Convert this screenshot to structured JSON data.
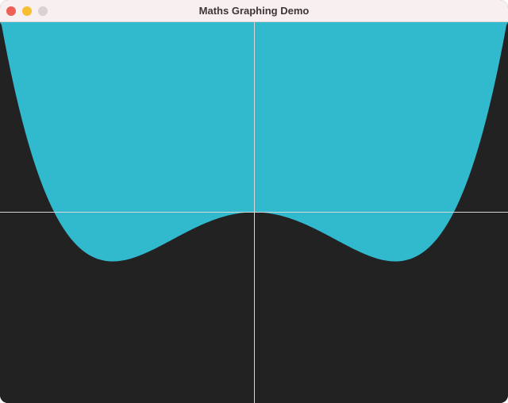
{
  "window": {
    "title": "Maths Graphing Demo",
    "traffic_lights": {
      "close": {
        "icon": "close-dot-icon",
        "color": "#ee5f58"
      },
      "minimize": {
        "icon": "minimize-dot-icon",
        "color": "#f8be32"
      },
      "zoom": {
        "icon": "zoom-dot-icon",
        "color": "#d8d2d3"
      }
    }
  },
  "colors": {
    "titlebar": "#f7eff0",
    "canvas_background": "#222222",
    "fill": "#31b9cd",
    "axis": "#d6d6d6"
  }
}
